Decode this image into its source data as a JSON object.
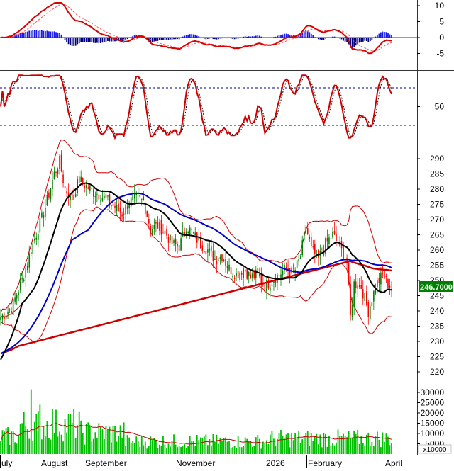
{
  "chart_data": [
    {
      "type": "line",
      "panel": "macd",
      "y_ticks": [
        "10",
        "5",
        "0",
        "-5"
      ],
      "ylim": [
        -8,
        12
      ],
      "series": [],
      "histogram": "blue bars above zero, dark navy bars below zero",
      "colors": {
        "macd": "#dd0000",
        "signal": "#ff4444",
        "hist_pos": "#1a1ae6",
        "hist_neg": "#000080"
      }
    },
    {
      "type": "line",
      "panel": "oscillator",
      "y_ticks": [
        "50"
      ],
      "reference_levels": [
        20,
        80
      ],
      "ylim": [
        0,
        100
      ],
      "colors": {
        "line": "#cc0000",
        "signal": "#000000",
        "levels": "#00008b"
      }
    },
    {
      "type": "line",
      "panel": "price",
      "y_ticks": [
        "290",
        "285",
        "280",
        "275",
        "270",
        "265",
        "260",
        "255",
        "250",
        "245",
        "240",
        "235",
        "230",
        "225",
        "220"
      ],
      "ylim": [
        216,
        294
      ],
      "last_price_label": "246.7000",
      "overlays": [
        "bollinger bands (red)",
        "moving average (black)",
        "moving average (blue)",
        "moving average (red)"
      ],
      "colors": {
        "candle_up": "#008000",
        "candle_down": "#ff0000",
        "bands": "#cc0000",
        "ma_black": "#000000",
        "ma_blue": "#0000cc",
        "ma_red": "#cc0000",
        "price_label_bg": "#008000"
      }
    },
    {
      "type": "bar",
      "panel": "volume",
      "y_ticks": [
        "30000",
        "25000",
        "20000",
        "15000",
        "10000",
        "5000"
      ],
      "ylim": [
        0,
        33000
      ],
      "unit_label": "x10000",
      "colors": {
        "bars": "#00c000",
        "ma": "#cc0000"
      }
    }
  ],
  "x_axis": {
    "labels": [
      "uly",
      "August",
      "September",
      "November",
      "2026",
      "February",
      "April"
    ]
  }
}
